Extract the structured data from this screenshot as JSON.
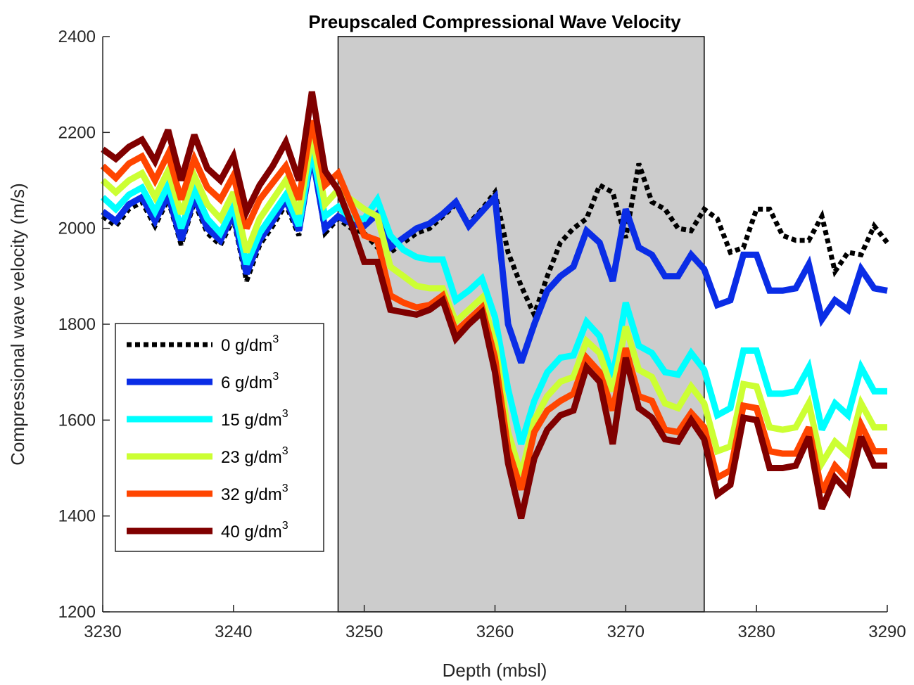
{
  "chart_data": {
    "type": "line",
    "title": "Preupscaled Compressional Wave Velocity",
    "xlabel": "Depth (mbsl)",
    "ylabel": "Compressional wave velocity (m/s)",
    "xlim": [
      3230,
      3290
    ],
    "ylim": [
      1200,
      2400
    ],
    "xticks": [
      "3230",
      "3240",
      "3250",
      "3260",
      "3270",
      "3280",
      "3290"
    ],
    "yticks": [
      "1200",
      "1400",
      "1600",
      "1800",
      "2000",
      "2200",
      "2400"
    ],
    "grid": false,
    "legend_position": "lower-left",
    "shaded_region": {
      "x_start": 3248,
      "x_end": 3276,
      "color": "#cccccc"
    },
    "x": [
      3230,
      3231,
      3232,
      3233,
      3234,
      3235,
      3236,
      3237,
      3238,
      3239,
      3240,
      3241,
      3242,
      3243,
      3244,
      3245,
      3246,
      3247,
      3248,
      3249,
      3250,
      3251,
      3252,
      3253,
      3254,
      3255,
      3256,
      3257,
      3258,
      3259,
      3260,
      3261,
      3262,
      3263,
      3264,
      3265,
      3266,
      3267,
      3268,
      3269,
      3270,
      3271,
      3272,
      3273,
      3274,
      3275,
      3276,
      3277,
      3278,
      3279,
      3280,
      3281,
      3282,
      3283,
      3284,
      3285,
      3286,
      3287,
      3288,
      3289,
      3290
    ],
    "series": [
      {
        "name": "0 g/dm",
        "sup": "3",
        "color": "#000000",
        "dashed": true,
        "values": [
          2025,
          2005,
          2040,
          2055,
          2005,
          2060,
          1965,
          2055,
          1990,
          1965,
          2020,
          1890,
          1965,
          2005,
          2050,
          1985,
          2150,
          1990,
          2020,
          2000,
          1990,
          1960,
          1950,
          1970,
          1990,
          2000,
          2025,
          2050,
          2010,
          2040,
          2075,
          1950,
          1880,
          1820,
          1900,
          1970,
          2000,
          2020,
          2090,
          2075,
          1980,
          2135,
          2055,
          2040,
          2000,
          1995,
          2040,
          2020,
          1950,
          1960,
          2040,
          2040,
          1985,
          1975,
          1975,
          2025,
          1910,
          1950,
          1945,
          2005,
          1970
        ]
      },
      {
        "name": "6 g/dm",
        "sup": "3",
        "color": "#0a2de6",
        "dashed": false,
        "values": [
          2035,
          2015,
          2050,
          2065,
          2015,
          2070,
          1975,
          2065,
          2000,
          1975,
          2030,
          1905,
          1975,
          2015,
          2060,
          1995,
          2155,
          2000,
          2025,
          2010,
          2005,
          2030,
          1960,
          1980,
          2000,
          2010,
          2030,
          2055,
          2005,
          2035,
          2065,
          1800,
          1720,
          1800,
          1870,
          1900,
          1920,
          1995,
          1970,
          1890,
          2040,
          1960,
          1945,
          1900,
          1900,
          1945,
          1915,
          1840,
          1850,
          1945,
          1945,
          1870,
          1870,
          1875,
          1925,
          1810,
          1850,
          1830,
          1915,
          1875,
          1870
        ]
      },
      {
        "name": "15 g/dm",
        "sup": "3",
        "color": "#00ffff",
        "dashed": false,
        "values": [
          2065,
          2040,
          2070,
          2085,
          2035,
          2090,
          2000,
          2080,
          2020,
          1990,
          2045,
          1925,
          1990,
          2030,
          2070,
          2005,
          2165,
          2025,
          2045,
          2020,
          2020,
          2060,
          1985,
          1955,
          1940,
          1935,
          1935,
          1850,
          1870,
          1895,
          1815,
          1665,
          1550,
          1640,
          1700,
          1730,
          1735,
          1805,
          1775,
          1690,
          1845,
          1755,
          1740,
          1700,
          1695,
          1740,
          1705,
          1610,
          1625,
          1745,
          1745,
          1655,
          1655,
          1660,
          1710,
          1580,
          1635,
          1610,
          1710,
          1660,
          1660
        ]
      },
      {
        "name": "23 g/dm",
        "sup": "3",
        "color": "#ccff33",
        "dashed": false,
        "values": [
          2100,
          2075,
          2100,
          2115,
          2065,
          2120,
          2030,
          2110,
          2050,
          2020,
          2075,
          1950,
          2020,
          2060,
          2100,
          2030,
          2195,
          2050,
          2080,
          2060,
          2040,
          2025,
          1920,
          1900,
          1880,
          1875,
          1875,
          1805,
          1830,
          1855,
          1760,
          1575,
          1485,
          1600,
          1650,
          1680,
          1690,
          1765,
          1740,
          1660,
          1795,
          1705,
          1690,
          1635,
          1625,
          1670,
          1635,
          1535,
          1545,
          1675,
          1670,
          1585,
          1580,
          1585,
          1635,
          1510,
          1555,
          1530,
          1635,
          1585,
          1585
        ]
      },
      {
        "name": "32 g/dm",
        "sup": "3",
        "color": "#ff4500",
        "dashed": false,
        "values": [
          2130,
          2105,
          2135,
          2150,
          2100,
          2155,
          2060,
          2145,
          2085,
          2060,
          2110,
          2000,
          2060,
          2095,
          2130,
          2060,
          2225,
          2090,
          2115,
          2050,
          1985,
          1975,
          1860,
          1845,
          1835,
          1840,
          1860,
          1785,
          1810,
          1835,
          1730,
          1540,
          1455,
          1575,
          1620,
          1640,
          1655,
          1730,
          1700,
          1620,
          1750,
          1650,
          1640,
          1580,
          1575,
          1615,
          1585,
          1480,
          1495,
          1630,
          1625,
          1535,
          1530,
          1530,
          1585,
          1450,
          1505,
          1475,
          1590,
          1535,
          1535
        ]
      },
      {
        "name": "40 g/dm",
        "sup": "3",
        "color": "#800000",
        "dashed": false,
        "values": [
          2165,
          2145,
          2170,
          2185,
          2140,
          2205,
          2100,
          2195,
          2125,
          2100,
          2150,
          2035,
          2090,
          2130,
          2180,
          2100,
          2285,
          2120,
          2080,
          2010,
          1930,
          1930,
          1830,
          1825,
          1820,
          1830,
          1850,
          1770,
          1800,
          1825,
          1700,
          1510,
          1395,
          1520,
          1580,
          1610,
          1620,
          1710,
          1680,
          1550,
          1730,
          1625,
          1605,
          1560,
          1555,
          1600,
          1560,
          1445,
          1465,
          1605,
          1600,
          1500,
          1500,
          1505,
          1565,
          1415,
          1480,
          1450,
          1565,
          1505,
          1505
        ]
      }
    ]
  }
}
